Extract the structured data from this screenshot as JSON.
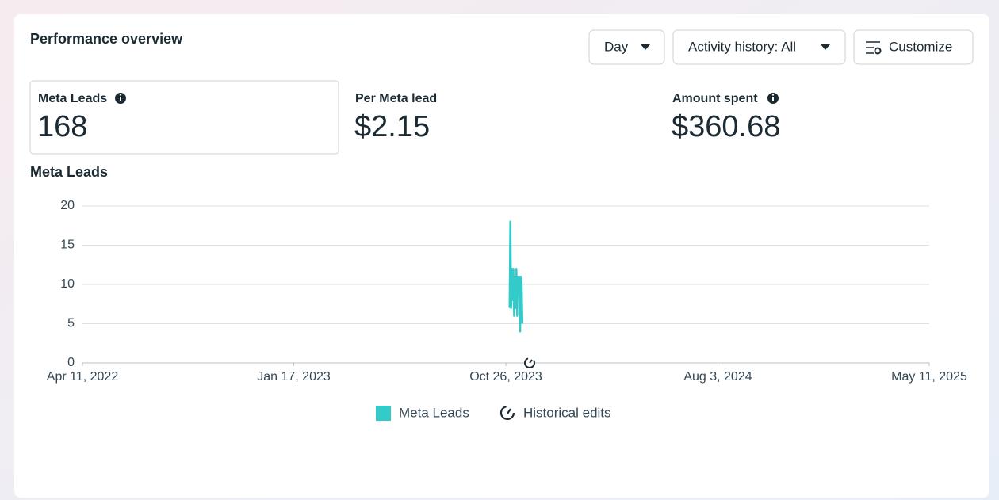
{
  "header": {
    "title": "Performance overview",
    "buttons": [
      "Day",
      "Activity history: All",
      "Customize"
    ]
  },
  "metrics": [
    {
      "label": "Meta Leads",
      "value": "168"
    },
    {
      "label": "Per Meta lead",
      "value": "$2.15"
    },
    {
      "label": "Amount spent",
      "value": "$360.68"
    }
  ],
  "chart_data": {
    "type": "line",
    "title": "Meta Leads",
    "x": [
      "2023-10-31",
      "2023-11-01",
      "2023-11-02",
      "2023-11-03",
      "2023-11-04",
      "2023-11-05",
      "2023-11-06",
      "2023-11-07",
      "2023-11-08",
      "2023-11-09",
      "2023-11-10",
      "2023-11-11",
      "2023-11-12",
      "2023-11-13",
      "2023-11-14",
      "2023-11-15",
      "2023-11-16",
      "2023-11-17"
    ],
    "series": [
      {
        "name": "Meta Leads",
        "color": "#33caca",
        "values": [
          7,
          18,
          7,
          12,
          8,
          12,
          6,
          11,
          7,
          12,
          6,
          11,
          9,
          11,
          4,
          11,
          10,
          5
        ]
      }
    ],
    "xlim": [
      "2022-04-11",
      "2025-05-11"
    ],
    "xticks": [
      {
        "value": "2022-04-11",
        "label": "Apr 11, 2022"
      },
      {
        "value": "2023-01-17",
        "label": "Jan 17, 2023"
      },
      {
        "value": "2023-10-26",
        "label": "Oct 26, 2023"
      },
      {
        "value": "2024-08-03",
        "label": "Aug 3, 2024"
      },
      {
        "value": "2025-05-11",
        "label": "May 11, 2025"
      }
    ],
    "ylim": [
      0,
      20
    ],
    "yticks": [
      0,
      5,
      10,
      15,
      20
    ],
    "grid": true,
    "extra_legend": "Historical edits"
  }
}
